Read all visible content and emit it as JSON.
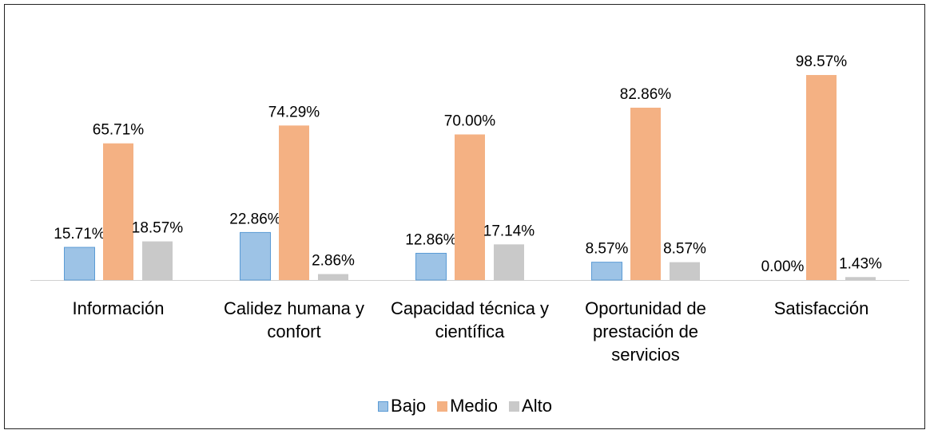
{
  "chart_data": {
    "type": "bar",
    "categories": [
      "Información",
      "Calidez humana y confort",
      "Capacidad técnica y científica",
      "Oportunidad de prestación de servicios",
      "Satisfacción"
    ],
    "series": [
      {
        "name": "Bajo",
        "color": "#9dc3e6",
        "values": [
          15.71,
          22.86,
          12.86,
          8.57,
          0.0
        ],
        "value_labels": [
          "15.71%",
          "22.86%",
          "12.86%",
          "8.57%",
          "0.00%"
        ]
      },
      {
        "name": "Medio",
        "color": "#f4b183",
        "values": [
          65.71,
          74.29,
          70.0,
          82.86,
          98.57
        ],
        "value_labels": [
          "65.71%",
          "74.29%",
          "70.00%",
          "82.86%",
          "98.57%"
        ]
      },
      {
        "name": "Alto",
        "color": "#c9c9c9",
        "values": [
          18.57,
          2.86,
          17.14,
          8.57,
          1.43
        ],
        "value_labels": [
          "18.57%",
          "2.86%",
          "17.14%",
          "8.57%",
          "1.43%"
        ]
      }
    ],
    "legend": "bottom"
  }
}
